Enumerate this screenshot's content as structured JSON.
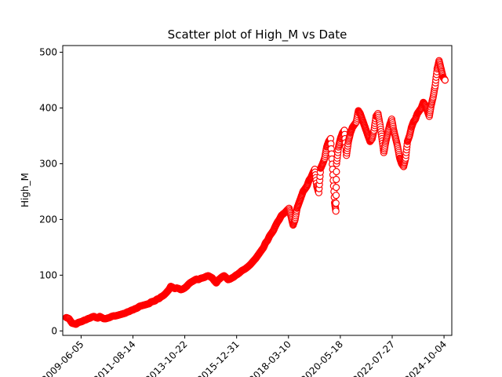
{
  "chart_data": {
    "type": "scatter",
    "title": "Scatter plot of High_M vs Date",
    "xlabel": "",
    "ylabel": "High_M",
    "ylim": [
      -8,
      512
    ],
    "xlim": [
      "2008-08-26",
      "2025-02-01"
    ],
    "x_ticks": [
      "2009-06-05",
      "2011-08-14",
      "2013-10-22",
      "2015-12-31",
      "2018-03-10",
      "2020-05-18",
      "2022-07-27",
      "2024-10-04"
    ],
    "x_tick_labels": [
      "2009-06-05",
      "2011-08-14",
      "2013-10-22",
      "2015-12-31",
      "2018-03-10",
      "2020-05-18",
      "2022-07-27",
      "2024-10-04"
    ],
    "y_ticks": [
      0,
      100,
      200,
      300,
      400,
      500
    ],
    "y_tick_labels": [
      "0",
      "100",
      "200",
      "300",
      "400",
      "500"
    ],
    "marker": {
      "style": "open-circle",
      "color": "#ff0000"
    },
    "grid": false,
    "legend": "none",
    "series": [
      {
        "x": [
          "2008-10-20",
          "2008-12-01",
          "2009-01-15",
          "2009-02-20",
          "2009-03-20",
          "2009-04-20",
          "2009-05-20",
          "2009-06-20",
          "2009-07-20",
          "2009-08-20",
          "2009-09-20",
          "2009-10-20",
          "2009-11-20",
          "2009-12-20",
          "2010-01-20",
          "2010-02-20",
          "2010-03-20",
          "2010-04-20",
          "2010-05-20",
          "2010-06-20",
          "2010-07-20",
          "2010-08-20",
          "2010-09-20",
          "2010-10-20",
          "2010-11-20",
          "2010-12-20",
          "2011-01-20",
          "2011-02-20",
          "2011-03-20",
          "2011-04-20",
          "2011-05-20",
          "2011-06-20",
          "2011-07-20",
          "2011-08-20",
          "2011-09-20",
          "2011-10-20",
          "2011-11-20",
          "2011-12-20",
          "2012-01-20",
          "2012-02-20",
          "2012-03-20",
          "2012-04-20",
          "2012-05-20",
          "2012-06-20",
          "2012-07-20",
          "2012-08-20",
          "2012-09-20",
          "2012-10-20",
          "2012-11-20",
          "2012-12-20",
          "2013-01-20",
          "2013-02-20",
          "2013-03-20",
          "2013-04-20",
          "2013-05-20",
          "2013-06-20",
          "2013-07-20",
          "2013-08-20",
          "2013-09-20",
          "2013-10-20",
          "2013-11-20",
          "2013-12-20",
          "2014-01-20",
          "2014-02-20",
          "2014-03-20",
          "2014-04-20",
          "2014-05-20",
          "2014-06-20",
          "2014-07-20",
          "2014-08-20",
          "2014-09-20",
          "2014-10-20",
          "2014-11-20",
          "2014-12-20",
          "2015-01-20",
          "2015-02-20",
          "2015-03-20",
          "2015-04-20",
          "2015-05-20",
          "2015-06-20",
          "2015-07-20",
          "2015-08-20",
          "2015-09-20",
          "2015-10-20",
          "2015-11-20",
          "2015-12-20",
          "2016-01-20",
          "2016-02-20",
          "2016-03-20",
          "2016-04-20",
          "2016-05-20",
          "2016-06-20",
          "2016-07-20",
          "2016-08-20",
          "2016-09-20",
          "2016-10-20",
          "2016-11-20",
          "2016-12-20",
          "2017-01-20",
          "2017-02-20",
          "2017-03-20",
          "2017-04-20",
          "2017-05-20",
          "2017-06-20",
          "2017-07-20",
          "2017-08-20",
          "2017-09-20",
          "2017-10-20",
          "2017-11-20",
          "2017-12-20",
          "2018-01-20",
          "2018-02-20",
          "2018-03-20",
          "2018-04-20",
          "2018-05-20",
          "2018-06-20",
          "2018-07-20",
          "2018-08-20",
          "2018-09-20",
          "2018-10-20",
          "2018-11-20",
          "2018-12-20",
          "2019-01-20",
          "2019-02-20",
          "2019-03-20",
          "2019-04-20",
          "2019-05-20",
          "2019-06-20",
          "2019-07-20",
          "2019-08-20",
          "2019-09-20",
          "2019-10-20",
          "2019-11-20",
          "2019-12-20",
          "2020-01-20",
          "2020-02-20",
          "2020-03-10",
          "2020-03-20",
          "2020-04-20",
          "2020-05-20",
          "2020-06-20",
          "2020-07-20",
          "2020-08-20",
          "2020-09-20",
          "2020-10-20",
          "2020-11-20",
          "2020-12-20",
          "2021-01-20",
          "2021-02-20",
          "2021-03-20",
          "2021-04-20",
          "2021-05-20",
          "2021-06-20",
          "2021-07-20",
          "2021-08-20",
          "2021-09-20",
          "2021-10-20",
          "2021-11-20",
          "2021-12-20",
          "2022-01-20",
          "2022-02-20",
          "2022-03-20",
          "2022-04-20",
          "2022-05-20",
          "2022-06-20",
          "2022-07-20",
          "2022-08-20",
          "2022-09-20",
          "2022-10-20",
          "2022-11-20",
          "2022-12-20",
          "2023-01-20",
          "2023-02-20",
          "2023-03-20",
          "2023-04-20",
          "2023-05-20",
          "2023-06-20",
          "2023-07-20",
          "2023-08-20",
          "2023-09-20",
          "2023-10-20",
          "2023-11-20",
          "2023-12-20",
          "2024-01-20",
          "2024-02-20",
          "2024-03-20",
          "2024-04-20",
          "2024-05-20",
          "2024-06-20",
          "2024-07-20",
          "2024-08-20",
          "2024-09-20",
          "2024-10-20"
        ],
        "y": [
          24,
          22,
          14,
          13,
          12,
          15,
          16,
          17,
          19,
          20,
          22,
          23,
          25,
          26,
          24,
          23,
          26,
          24,
          22,
          22,
          23,
          24,
          26,
          27,
          27,
          28,
          29,
          30,
          31,
          32,
          34,
          35,
          37,
          38,
          40,
          41,
          44,
          45,
          46,
          47,
          48,
          49,
          52,
          53,
          54,
          57,
          58,
          61,
          63,
          66,
          70,
          74,
          80,
          78,
          76,
          77,
          76,
          74,
          75,
          77,
          80,
          84,
          87,
          89,
          91,
          93,
          92,
          94,
          95,
          96,
          98,
          99,
          97,
          95,
          90,
          86,
          91,
          94,
          97,
          99,
          96,
          92,
          93,
          95,
          97,
          100,
          102,
          105,
          108,
          110,
          112,
          115,
          118,
          122,
          126,
          130,
          135,
          140,
          145,
          150,
          158,
          162,
          170,
          175,
          180,
          188,
          195,
          200,
          207,
          210,
          213,
          217,
          220,
          205,
          190,
          200,
          220,
          230,
          240,
          250,
          255,
          260,
          270,
          275,
          283,
          290,
          260,
          248,
          292,
          300,
          310,
          330,
          340,
          345,
          290,
          230,
          215,
          300,
          330,
          345,
          355,
          360,
          315,
          340,
          355,
          365,
          370,
          375,
          395,
          390,
          380,
          370,
          360,
          350,
          340,
          345,
          360,
          385,
          390,
          370,
          345,
          320,
          340,
          355,
          370,
          380,
          360,
          345,
          330,
          310,
          300,
          295,
          310,
          340,
          350,
          365,
          375,
          380,
          390,
          395,
          400,
          410,
          405,
          395,
          385,
          405,
          420,
          440,
          470,
          485,
          470,
          455,
          450
        ]
      }
    ]
  }
}
